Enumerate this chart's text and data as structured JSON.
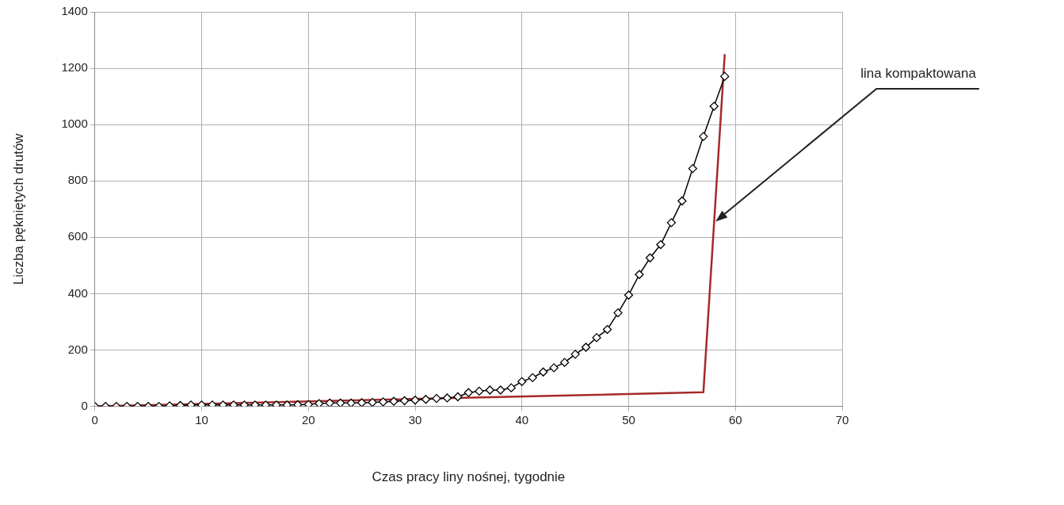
{
  "chart_data": {
    "type": "line",
    "xlabel": "Czas pracy liny nośnej, tygodnie",
    "ylabel": "Liczba pękniętych drutów",
    "xlim": [
      0,
      70
    ],
    "xticks": [
      0,
      10,
      20,
      30,
      40,
      50,
      60,
      70
    ],
    "ylim": [
      0,
      1400
    ],
    "yticks": [
      0,
      200,
      400,
      600,
      800,
      1000,
      1200,
      1400
    ],
    "grid": true,
    "legend": false,
    "series": [
      {
        "color": "#000000",
        "marker": "diamond",
        "x": [
          0,
          1,
          2,
          3,
          4,
          5,
          6,
          7,
          8,
          9,
          10,
          11,
          12,
          13,
          14,
          15,
          16,
          17,
          18,
          19,
          20,
          21,
          22,
          23,
          24,
          25,
          26,
          27,
          28,
          29,
          30,
          31,
          32,
          33,
          34,
          35,
          36,
          37,
          38,
          39,
          40,
          41,
          42,
          43,
          44,
          45,
          46,
          47,
          48,
          49,
          50,
          51,
          52,
          53,
          54,
          55,
          56,
          57,
          58,
          59
        ],
        "values": [
          0,
          0,
          0,
          0,
          0,
          0,
          0,
          2,
          3,
          5,
          5,
          5,
          5,
          5,
          5,
          5,
          5,
          5,
          5,
          6,
          7,
          10,
          12,
          12,
          12,
          13,
          14,
          16,
          18,
          20,
          22,
          25,
          28,
          30,
          34,
          49,
          54,
          58,
          58,
          66,
          88,
          102,
          122,
          137,
          156,
          185,
          210,
          244,
          273,
          332,
          395,
          468,
          527,
          574,
          652,
          729,
          844,
          958,
          1065,
          1171
        ]
      },
      {
        "color": "#a52a2a",
        "marker": "none",
        "x": [
          0,
          57,
          59
        ],
        "values": [
          0,
          50,
          1250
        ]
      }
    ],
    "annotations": [
      {
        "text": "lina kompaktowana",
        "x": 58,
        "y": 650
      }
    ]
  }
}
